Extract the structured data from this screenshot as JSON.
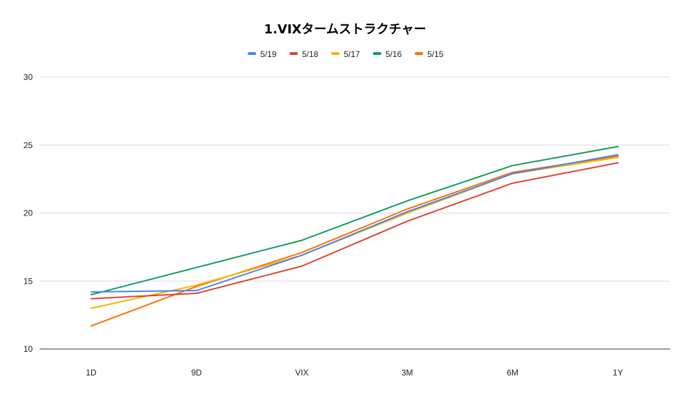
{
  "chart_data": {
    "type": "line",
    "title": "1.VIXタームストラクチャー",
    "xlabel": "",
    "ylabel": "",
    "categories": [
      "1D",
      "9D",
      "VIX",
      "3M",
      "6M",
      "1Y"
    ],
    "ylim": [
      10,
      30
    ],
    "yticks": [
      10,
      15,
      20,
      25,
      30
    ],
    "grid": true,
    "legend_position": "top",
    "series": [
      {
        "name": "5/19",
        "color": "#4285f4",
        "values": [
          14.2,
          14.3,
          16.9,
          20.1,
          22.9,
          24.3
        ]
      },
      {
        "name": "5/18",
        "color": "#db4437",
        "values": [
          13.7,
          14.1,
          16.1,
          19.4,
          22.2,
          23.7
        ]
      },
      {
        "name": "5/17",
        "color": "#f4b400",
        "values": [
          13.0,
          14.7,
          16.9,
          20.0,
          22.9,
          24.1
        ]
      },
      {
        "name": "5/16",
        "color": "#0f9d58",
        "values": [
          14.0,
          16.0,
          18.0,
          20.9,
          23.5,
          24.9
        ]
      },
      {
        "name": "5/15",
        "color": "#ff6d00",
        "values": [
          11.7,
          14.6,
          17.1,
          20.3,
          23.0,
          24.2
        ]
      }
    ]
  }
}
